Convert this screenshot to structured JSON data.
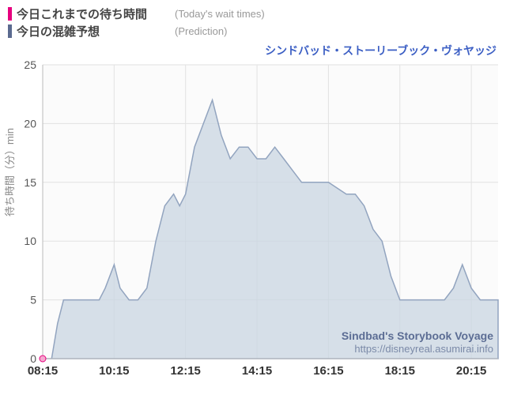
{
  "legend": {
    "series1": {
      "color": "#e6007e",
      "jp": "今日これまでの待ち時間",
      "en": "(Today's wait times)"
    },
    "series2": {
      "color": "#5b6a8f",
      "jp": "今日の混雑予想",
      "en": "(Prediction)"
    }
  },
  "chart": {
    "type": "area",
    "title": "シンドバッド・ストーリーブック・ヴォヤッジ",
    "title_color": "#3c5fc4",
    "ylabel": "待ち時間（分）min",
    "ylim": [
      0,
      25
    ],
    "ytick_step": 5,
    "xticks": [
      "08:15",
      "10:15",
      "12:15",
      "14:15",
      "16:15",
      "18:15",
      "20:15"
    ],
    "x_range_minutes": [
      495,
      1260
    ],
    "area_fill": "#c9d5e2",
    "area_fill_opacity": 0.75,
    "area_stroke": "#92a4bf",
    "background": "#fbfbfb",
    "grid_color": "#e2e2e2",
    "first_point_marker": {
      "fill": "#f5a8cf",
      "stroke": "#e6007e",
      "r": 4
    },
    "credit_title": "Sindbad's Storybook Voyage",
    "credit_url": "https://disneyreal.asumirai.info",
    "data": [
      [
        495,
        0
      ],
      [
        510,
        0
      ],
      [
        520,
        3
      ],
      [
        530,
        5
      ],
      [
        545,
        5
      ],
      [
        560,
        5
      ],
      [
        575,
        5
      ],
      [
        590,
        5
      ],
      [
        600,
        6
      ],
      [
        615,
        8
      ],
      [
        625,
        6
      ],
      [
        640,
        5
      ],
      [
        655,
        5
      ],
      [
        670,
        6
      ],
      [
        685,
        10
      ],
      [
        700,
        13
      ],
      [
        715,
        14
      ],
      [
        725,
        13
      ],
      [
        735,
        14
      ],
      [
        750,
        18
      ],
      [
        765,
        20
      ],
      [
        780,
        22
      ],
      [
        795,
        19
      ],
      [
        810,
        17
      ],
      [
        825,
        18
      ],
      [
        840,
        18
      ],
      [
        855,
        17
      ],
      [
        870,
        17
      ],
      [
        885,
        18
      ],
      [
        900,
        17
      ],
      [
        915,
        16
      ],
      [
        930,
        15
      ],
      [
        945,
        15
      ],
      [
        960,
        15
      ],
      [
        975,
        15
      ],
      [
        990,
        14.5
      ],
      [
        1005,
        14
      ],
      [
        1020,
        14
      ],
      [
        1035,
        13
      ],
      [
        1050,
        11
      ],
      [
        1065,
        10
      ],
      [
        1080,
        7
      ],
      [
        1095,
        5
      ],
      [
        1110,
        5
      ],
      [
        1125,
        5
      ],
      [
        1140,
        5
      ],
      [
        1155,
        5
      ],
      [
        1170,
        5
      ],
      [
        1185,
        6
      ],
      [
        1200,
        8
      ],
      [
        1215,
        6
      ],
      [
        1230,
        5
      ],
      [
        1245,
        5
      ],
      [
        1260,
        5
      ]
    ]
  }
}
